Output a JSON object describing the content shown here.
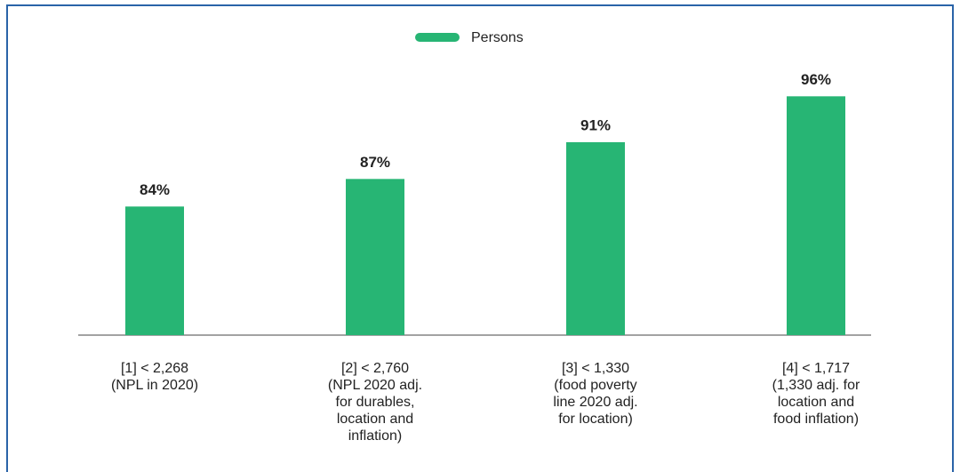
{
  "chart_data": {
    "type": "bar",
    "series": [
      {
        "name": "Persons",
        "color": "#27b574",
        "values": [
          84,
          87,
          91,
          96
        ],
        "value_labels": [
          "84%",
          "87%",
          "91%",
          "96%"
        ]
      }
    ],
    "categories": [
      [
        "[1] < 2,268",
        "(NPL in 2020)"
      ],
      [
        "[2] < 2,760",
        "(NPL 2020 adj.",
        "for durables,",
        "location and",
        "inflation)"
      ],
      [
        "[3] < 1,330",
        "(food poverty",
        "line 2020 adj.",
        "for location)"
      ],
      [
        "[4] < 1,717",
        "(1,330 adj. for",
        "location and",
        "food inflation)"
      ]
    ],
    "ylim": [
      70,
      100
    ],
    "legend": "top"
  }
}
